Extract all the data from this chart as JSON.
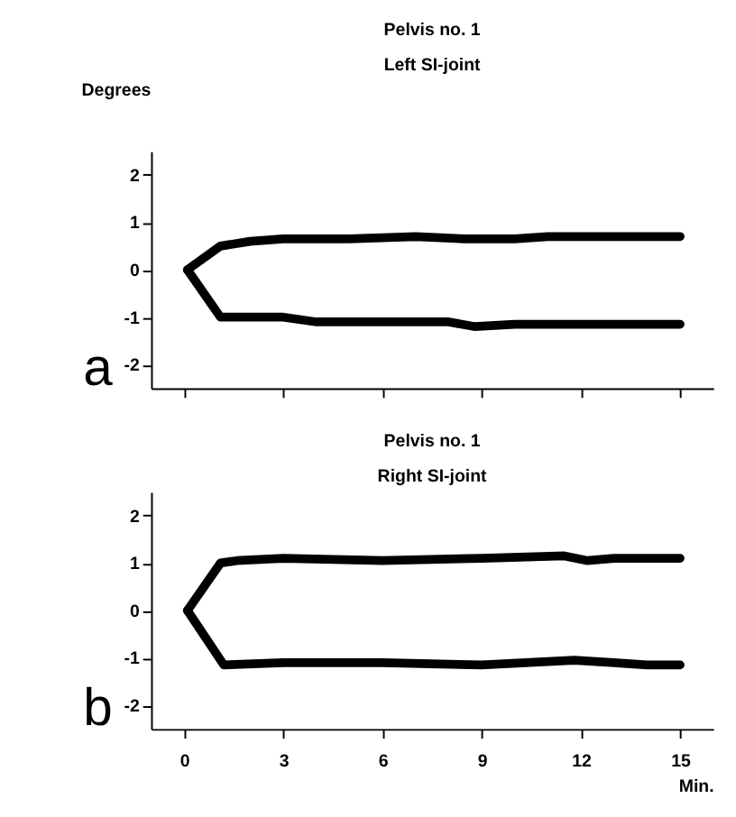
{
  "chart_data": [
    {
      "type": "line",
      "title": "Pelvis no. 1",
      "subtitle": "Left SI-joint",
      "ylabel": "Degrees",
      "annotations": [
        "a"
      ],
      "series": [
        {
          "color": "#000000",
          "x": [
            0.1,
            1.1,
            2,
            3,
            5,
            7,
            8.5,
            10,
            11,
            15
          ],
          "values": [
            0,
            0.5,
            0.6,
            0.65,
            0.65,
            0.7,
            0.65,
            0.65,
            0.7,
            0.7
          ]
        },
        {
          "color": "#000000",
          "x": [
            0.1,
            1.1,
            3,
            4,
            6,
            8,
            8.8,
            10,
            15
          ],
          "values": [
            0,
            -1,
            -1,
            -1.1,
            -1.1,
            -1.1,
            -1.2,
            -1.15,
            -1.15
          ]
        }
      ],
      "xlim": [
        -1,
        16
      ],
      "xticks": [
        {
          "value": 0,
          "label": null
        },
        {
          "value": 3,
          "label": null
        },
        {
          "value": 6,
          "label": null
        },
        {
          "value": 9,
          "label": null
        },
        {
          "value": 12,
          "label": null
        },
        {
          "value": 15,
          "label": null
        }
      ],
      "ylim": [
        -2.5,
        2.5
      ],
      "yticks": [
        -2,
        -1,
        0,
        1,
        2
      ],
      "tick_labels": "y",
      "grid": false,
      "line_style": "solid",
      "marker": "none"
    },
    {
      "type": "line",
      "title": "Pelvis no. 1",
      "subtitle": "Right SI-joint",
      "xlabel": "Min.",
      "annotations": [
        "b"
      ],
      "series": [
        {
          "color": "#000000",
          "x": [
            0.1,
            1.1,
            1.6,
            3,
            6,
            9,
            11.5,
            12.2,
            13,
            15
          ],
          "values": [
            0,
            1,
            1.05,
            1.1,
            1.05,
            1.1,
            1.15,
            1.05,
            1.1,
            1.1
          ]
        },
        {
          "color": "#000000",
          "x": [
            0.1,
            1.2,
            3,
            6,
            9,
            11.8,
            13,
            14,
            15
          ],
          "values": [
            0,
            -1.15,
            -1.1,
            -1.1,
            -1.15,
            -1.05,
            -1.1,
            -1.15,
            -1.15
          ]
        }
      ],
      "xlim": [
        -1,
        16
      ],
      "xticks": [
        0,
        3,
        6,
        9,
        12,
        15
      ],
      "ylim": [
        -2.5,
        2.5
      ],
      "yticks": [
        -2,
        -1,
        0,
        1,
        2
      ],
      "grid": false,
      "line_style": "solid",
      "marker": "none"
    }
  ]
}
